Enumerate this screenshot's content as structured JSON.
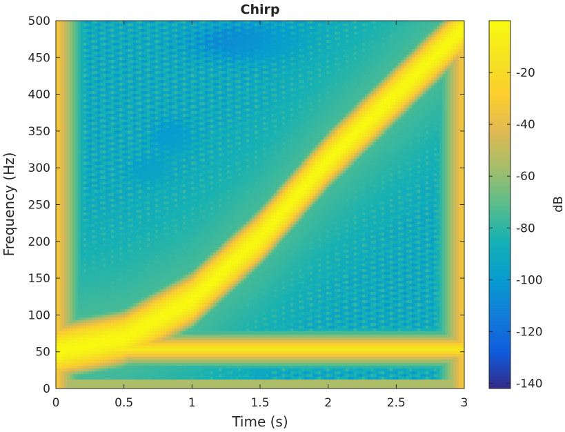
{
  "chart_data": {
    "type": "heatmap",
    "title": "Chirp",
    "xlabel": "Time (s)",
    "ylabel": "Frequency (Hz)",
    "colorbar_label": "dB",
    "xlim": [
      0,
      3
    ],
    "ylim": [
      0,
      500
    ],
    "clim": [
      -142,
      0
    ],
    "colormap": "parula",
    "x_ticks": [
      0,
      0.5,
      1,
      1.5,
      2,
      2.5,
      3
    ],
    "x_tick_labels": [
      "0",
      "0.5",
      "1",
      "1.5",
      "2",
      "2.5",
      "3"
    ],
    "y_ticks": [
      0,
      50,
      100,
      150,
      200,
      250,
      300,
      350,
      400,
      450,
      500
    ],
    "y_tick_labels": [
      "0",
      "50",
      "100",
      "150",
      "200",
      "250",
      "300",
      "350",
      "400",
      "450",
      "500"
    ],
    "colorbar_ticks": [
      -20,
      -40,
      -60,
      -80,
      -100,
      -120,
      -140
    ],
    "colorbar_tick_labels": [
      "-20",
      "-40",
      "-60",
      "-80",
      "-100",
      "-120",
      "-140"
    ],
    "chirp_ridge": {
      "time": [
        0,
        0.5,
        1,
        1.5,
        2,
        2.5,
        3
      ],
      "frequency": [
        50,
        68,
        120,
        205,
        310,
        400,
        490
      ]
    },
    "ridge_level": -2,
    "background_level": -90
  }
}
